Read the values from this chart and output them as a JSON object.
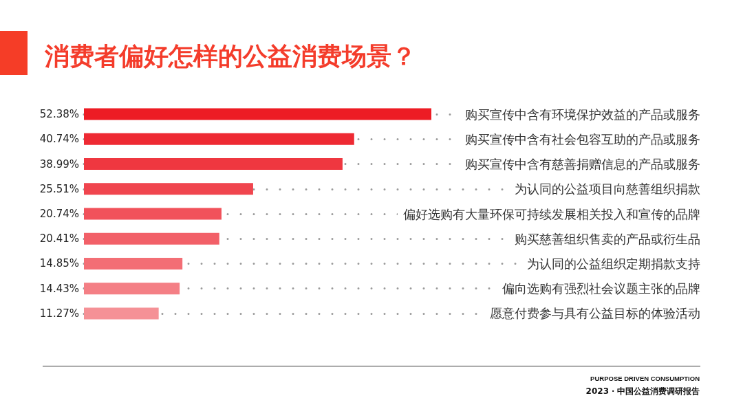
{
  "chart_data": {
    "type": "bar",
    "orientation": "horizontal",
    "title": "消费者偏好怎样的公益消费场景？",
    "categories": [
      "购买宣传中含有环境保护效益的产品或服务",
      "购买宣传中含有社会包容互助的产品或服务",
      "购买宣传中含有慈善捐赠信息的产品或服务",
      "为认同的公益项目向慈善组织捐款",
      "偏好选购有大量环保可持续发展相关投入和宣传的品牌",
      "购买慈善组织售卖的产品或衍生品",
      "为认同的公益组织定期捐款支持",
      "偏向选购有强烈社会议题主张的品牌",
      "愿意付费参与具有公益目标的体验活动"
    ],
    "values": [
      52.38,
      40.74,
      38.99,
      25.51,
      20.74,
      20.41,
      14.85,
      14.43,
      11.27
    ],
    "colors": [
      "#ed1c24",
      "#ee2a33",
      "#ef3740",
      "#f0454e",
      "#f1525b",
      "#f26068",
      "#f36e75",
      "#f47f85",
      "#f59196"
    ],
    "value_labels": [
      "52.38%",
      "40.74%",
      "38.99%",
      "25.51%",
      "20.74%",
      "20.41%",
      "14.85%",
      "14.43%",
      "11.27%"
    ],
    "grid": "y",
    "tick_labels": "y",
    "annotations": [
      "PURPOSE DRIVEN CONSUMPTION",
      "2023・中国公益消费调研报告"
    ]
  }
}
